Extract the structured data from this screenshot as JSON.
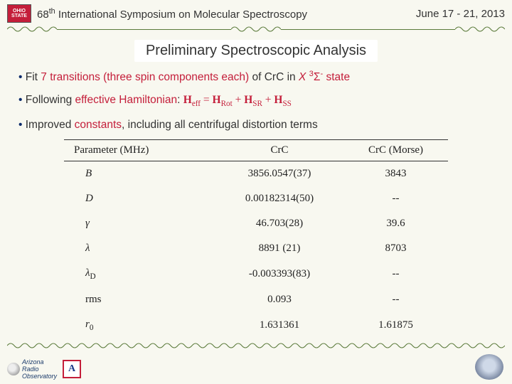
{
  "colors": {
    "background": "#f8f8f0",
    "accent_red": "#c41e3a",
    "accent_blue": "#0a2a6a",
    "rule_green": "#5a7a3a",
    "text": "#333333"
  },
  "header": {
    "logo_text": "OHIO STATE",
    "title_prefix": "68",
    "title_sup": "th",
    "title_rest": " International Symposium on Molecular Spectroscopy",
    "date": "June 17 - 21, 2013"
  },
  "section_title": "Preliminary Spectroscopic Analysis",
  "bullets": {
    "b1_lead": "Fit ",
    "b1_hl": "7 transitions (three spin components each)",
    "b1_mid": " of CrC in ",
    "b1_state_pre": "X ",
    "b1_state_sup": "3",
    "b1_state_sigma": "Σ",
    "b1_state_supminus": "-",
    "b1_state_post": " state",
    "b2_lead": "Following ",
    "b2_hl": "effective Hamiltonian",
    "b2_colon": ": ",
    "b2_eq_heff": "H",
    "b2_eq_eff": "eff",
    "b2_eq_eq": " = ",
    "b2_eq_h1": "H",
    "b2_eq_rot": "Rot",
    "b2_eq_plus1": " + ",
    "b2_eq_h2": "H",
    "b2_eq_sr": "SR",
    "b2_eq_plus2": " + ",
    "b2_eq_h3": "H",
    "b2_eq_ss": "SS",
    "b3_lead": "Improved ",
    "b3_hl": "constants",
    "b3_rest": ", including all centrifugal distortion terms"
  },
  "table": {
    "headers": [
      "Parameter (MHz)",
      "CrC",
      "CrC (Morse)"
    ],
    "rows": [
      {
        "param": "B",
        "sub": "",
        "crc": "3856.0547(37)",
        "morse": "3843"
      },
      {
        "param": "D",
        "sub": "",
        "crc": "0.00182314(50)",
        "morse": "--"
      },
      {
        "param": "γ",
        "sub": "",
        "crc": "46.703(28)",
        "morse": "39.6"
      },
      {
        "param": "λ",
        "sub": "",
        "crc": "8891 (21)",
        "morse": "8703"
      },
      {
        "param": "λ",
        "sub": "D",
        "crc": "-0.003393(83)",
        "morse": "--"
      },
      {
        "param": "rms",
        "sub": "",
        "crc": "0.093",
        "morse": "--"
      },
      {
        "param": "r",
        "sub": "0",
        "crc": "1.631361",
        "morse": "1.61875"
      }
    ]
  },
  "footer": {
    "aro_line1": "Arizona",
    "aro_line2": "Radio",
    "aro_line3": "Observatory",
    "ua": "A"
  }
}
